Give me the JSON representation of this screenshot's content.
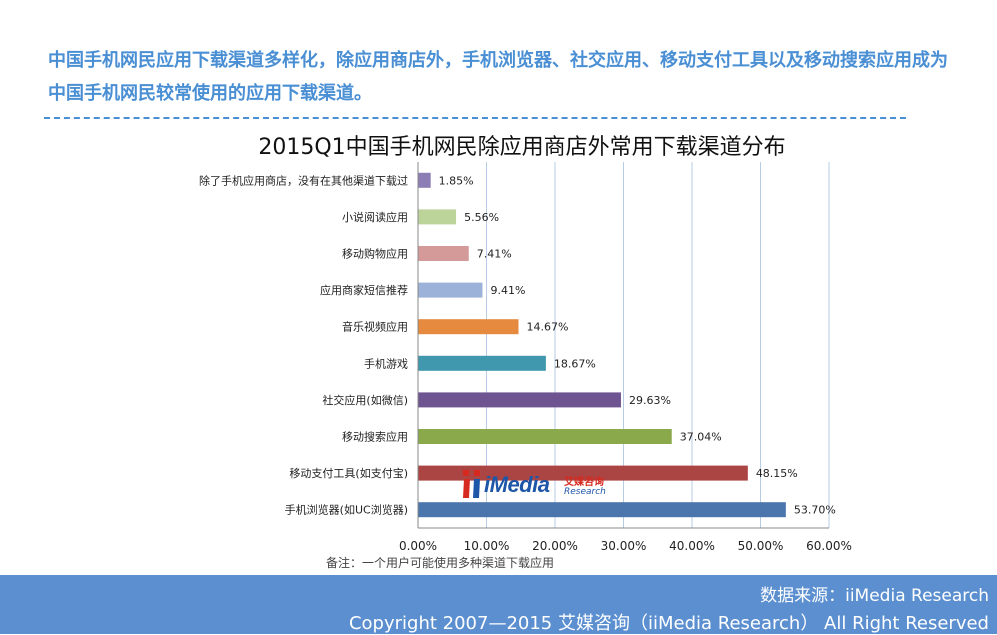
{
  "headline": "中国手机网民应用下载渠道多样化，除应用商店外，手机浏览器、社交应用、移动支付工具以及移动搜索应用成为中国手机网民较常使用的应用下载渠道。",
  "note": "备注：一个用户可能使用多种渠道下载应用",
  "footer": {
    "source": "数据来源：iiMedia Research",
    "copyright": "Copyright 2007—2015 艾媒咨询（iiMedia Research） All Right Reserved"
  },
  "logo": {
    "brand": "iMedia",
    "cn": "艾媒咨询",
    "en": "Research"
  },
  "colors": {
    "headline": "#4a8fd4",
    "footer": "#5b8fd0",
    "grid": "#b8cce4"
  },
  "chart_data": {
    "type": "bar",
    "orientation": "horizontal",
    "title": "2015Q1中国手机网民除应用商店外常用下载渠道分布",
    "xlabel": "",
    "ylabel": "",
    "xlim": [
      0,
      60
    ],
    "x_ticks": [
      "0.00%",
      "10.00%",
      "20.00%",
      "30.00%",
      "40.00%",
      "50.00%",
      "60.00%"
    ],
    "grid": "vertical",
    "categories": [
      "除了手机应用商店，没有在其他渠道下载过",
      "小说阅读应用",
      "移动购物应用",
      "应用商家短信推荐",
      "音乐视频应用",
      "手机游戏",
      "社交应用(如微信)",
      "移动搜索应用",
      "移动支付工具(如支付宝)",
      "手机浏览器(如UC浏览器)"
    ],
    "values": [
      1.85,
      5.56,
      7.41,
      9.41,
      14.67,
      18.67,
      29.63,
      37.04,
      48.15,
      53.7
    ],
    "value_labels": [
      "1.85%",
      "5.56%",
      "7.41%",
      "9.41%",
      "14.67%",
      "18.67%",
      "29.63%",
      "37.04%",
      "48.15%",
      "53.70%"
    ],
    "bar_colors": [
      "#8c7db4",
      "#bcd39a",
      "#d49a9a",
      "#9db2d8",
      "#e58a3e",
      "#3f98ad",
      "#6e5591",
      "#8aa94b",
      "#aa4544",
      "#4a76ad"
    ]
  }
}
